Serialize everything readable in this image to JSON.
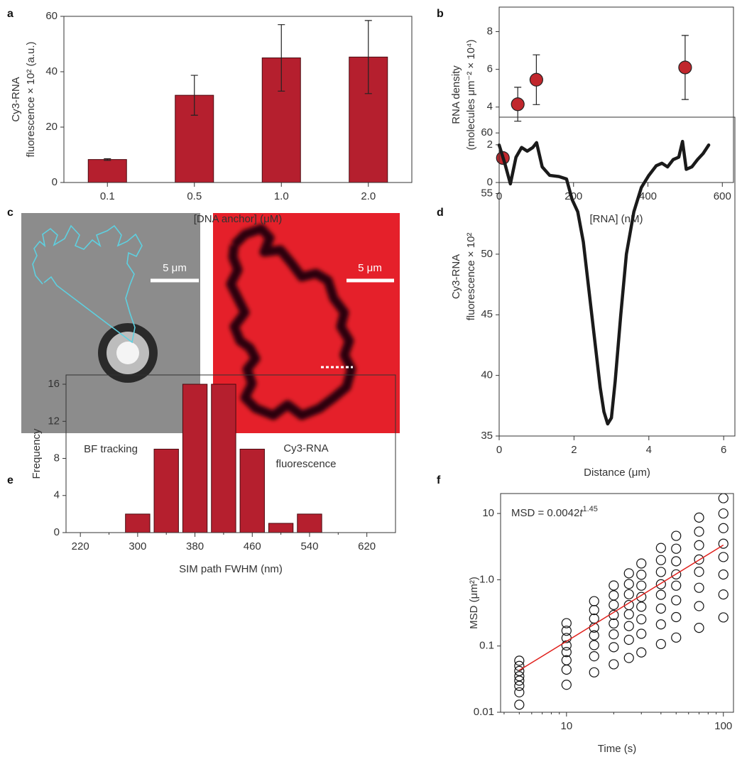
{
  "chart_data": [
    {
      "panel": "a",
      "type": "bar",
      "categories": [
        "0.1",
        "0.5",
        "1.0",
        "2.0"
      ],
      "values": [
        8.3,
        31.5,
        45,
        45.3
      ],
      "errors": [
        0.3,
        7.2,
        12,
        13.2
      ],
      "color": "#b51f2e",
      "ylim": [
        0,
        60
      ],
      "yticks": [
        0,
        20,
        40,
        60
      ],
      "xlabel": "[DNA anchor] (μM)",
      "ylabel": [
        "Cy3-RNA",
        "fluorescence × 10² (a.u.)"
      ]
    },
    {
      "panel": "b",
      "type": "scatter",
      "x": [
        10,
        50,
        100,
        500
      ],
      "values": [
        1.3,
        4.15,
        5.45,
        6.1
      ],
      "errors": [
        null,
        0.9,
        1.32,
        1.7
      ],
      "color": "#c1272d",
      "xlim": [
        0,
        630
      ],
      "xticks": [
        0,
        200,
        400,
        600
      ],
      "ylim": [
        0,
        9.3
      ],
      "yticks": [
        0,
        2,
        4,
        6,
        8
      ],
      "xlabel": "[RNA] (nM)",
      "ylabel": [
        "RNA density",
        "(molecules μm⁻² × 10⁴)"
      ]
    },
    {
      "panel": "d",
      "type": "line",
      "x": [
        0,
        0.15,
        0.3,
        0.45,
        0.6,
        0.75,
        0.9,
        1.0,
        1.15,
        1.35,
        1.6,
        1.8,
        1.95,
        2.1,
        2.25,
        2.4,
        2.55,
        2.7,
        2.8,
        2.9,
        3.0,
        3.1,
        3.25,
        3.4,
        3.6,
        3.8,
        4.0,
        4.2,
        4.35,
        4.5,
        4.65,
        4.8,
        4.9,
        5.0,
        5.15,
        5.3,
        5.45,
        5.6
      ],
      "values": [
        59,
        57.5,
        55.8,
        58,
        58.8,
        58.5,
        58.8,
        59.2,
        57.2,
        56.5,
        56.4,
        56.2,
        54.5,
        53.5,
        51,
        47,
        43,
        39,
        37,
        36,
        36.5,
        39.5,
        45,
        50,
        53.5,
        55.5,
        56.5,
        57.3,
        57.5,
        57.2,
        57.8,
        58,
        59.3,
        57,
        57.2,
        57.8,
        58.3,
        59
      ],
      "color": "#1a1a1a",
      "xlim": [
        0,
        6.3
      ],
      "xticks": [
        0,
        2,
        4,
        6
      ],
      "ylim": [
        35,
        61.3
      ],
      "yticks": [
        35,
        40,
        45,
        50,
        55,
        60
      ],
      "xlabel": "Distance (μm)",
      "ylabel": [
        "Cy3-RNA",
        "fluorescence × 10²"
      ]
    },
    {
      "panel": "e",
      "type": "histogram",
      "bins": [
        280,
        320,
        360,
        400,
        440,
        480,
        520,
        560
      ],
      "values": [
        2,
        9,
        16,
        16,
        9,
        1,
        2
      ],
      "color": "#b51f2e",
      "xlim": [
        200,
        660
      ],
      "xticks": [
        220,
        300,
        380,
        460,
        540,
        620
      ],
      "xminor_ticks": [
        260,
        340,
        420,
        500,
        580
      ],
      "ylim": [
        0,
        17
      ],
      "yticks": [
        0,
        4,
        8,
        12,
        16
      ],
      "xlabel": "SIM path FWHM (nm)",
      "ylabel": "Frequency"
    },
    {
      "panel": "f",
      "type": "scatter",
      "log_x": true,
      "log_y": true,
      "marker": "open-circle",
      "color": "#111111",
      "x": [
        5,
        10,
        15,
        20,
        25,
        30,
        40,
        50,
        70,
        100
      ],
      "series": [
        {
          "values": [
            0.013,
            0.026,
            0.04,
            0.053,
            0.066,
            0.08,
            0.107,
            0.134,
            0.188,
            0.27
          ]
        },
        {
          "values": [
            0.02,
            0.044,
            0.07,
            0.096,
            0.124,
            0.153,
            0.212,
            0.273,
            0.4,
            0.6
          ]
        },
        {
          "values": [
            0.025,
            0.061,
            0.103,
            0.15,
            0.2,
            0.253,
            0.367,
            0.49,
            0.757,
            1.2
          ]
        },
        {
          "values": [
            0.03,
            0.081,
            0.145,
            0.219,
            0.301,
            0.392,
            0.592,
            0.815,
            1.32,
            2.2
          ]
        },
        {
          "values": [
            0.035,
            0.102,
            0.189,
            0.294,
            0.415,
            0.55,
            0.855,
            1.205,
            2.02,
            3.5
          ]
        },
        {
          "values": [
            0.042,
            0.132,
            0.259,
            0.417,
            0.604,
            0.815,
            1.31,
            1.9,
            3.32,
            6
          ]
        },
        {
          "values": [
            0.05,
            0.17,
            0.349,
            0.581,
            0.863,
            1.19,
            1.98,
            2.94,
            5.32,
            10
          ]
        },
        {
          "values": [
            0.06,
            0.221,
            0.475,
            0.819,
            1.25,
            1.76,
            3.02,
            4.6,
            8.67,
            17
          ]
        }
      ],
      "fit": {
        "x": [
          5,
          100
        ],
        "values": [
          0.043,
          3.34
        ],
        "color": "#e0201c"
      },
      "annotation": [
        "MSD = 0.0042",
        "t",
        "1.45"
      ],
      "xlim": [
        3.8,
        116
      ],
      "xticks": [
        10,
        100
      ],
      "xminor_ticks": [
        4,
        5,
        6,
        7,
        8,
        9,
        20,
        30,
        40,
        50,
        60,
        70,
        80,
        90
      ],
      "ylim": [
        0.01,
        20
      ],
      "yticks": [
        0.01,
        0.1,
        {
          "value": 1,
          "label": "1.0"
        },
        10
      ],
      "xlabel": "Time (s)",
      "ylabel": "MSD (μm²)"
    }
  ],
  "images": {
    "panel": "c",
    "scale_bars": [
      "5 μm",
      "5 μm"
    ],
    "captions": [
      [
        "BF tracking"
      ],
      [
        "Cy3-RNA",
        "fluorescence"
      ]
    ]
  }
}
